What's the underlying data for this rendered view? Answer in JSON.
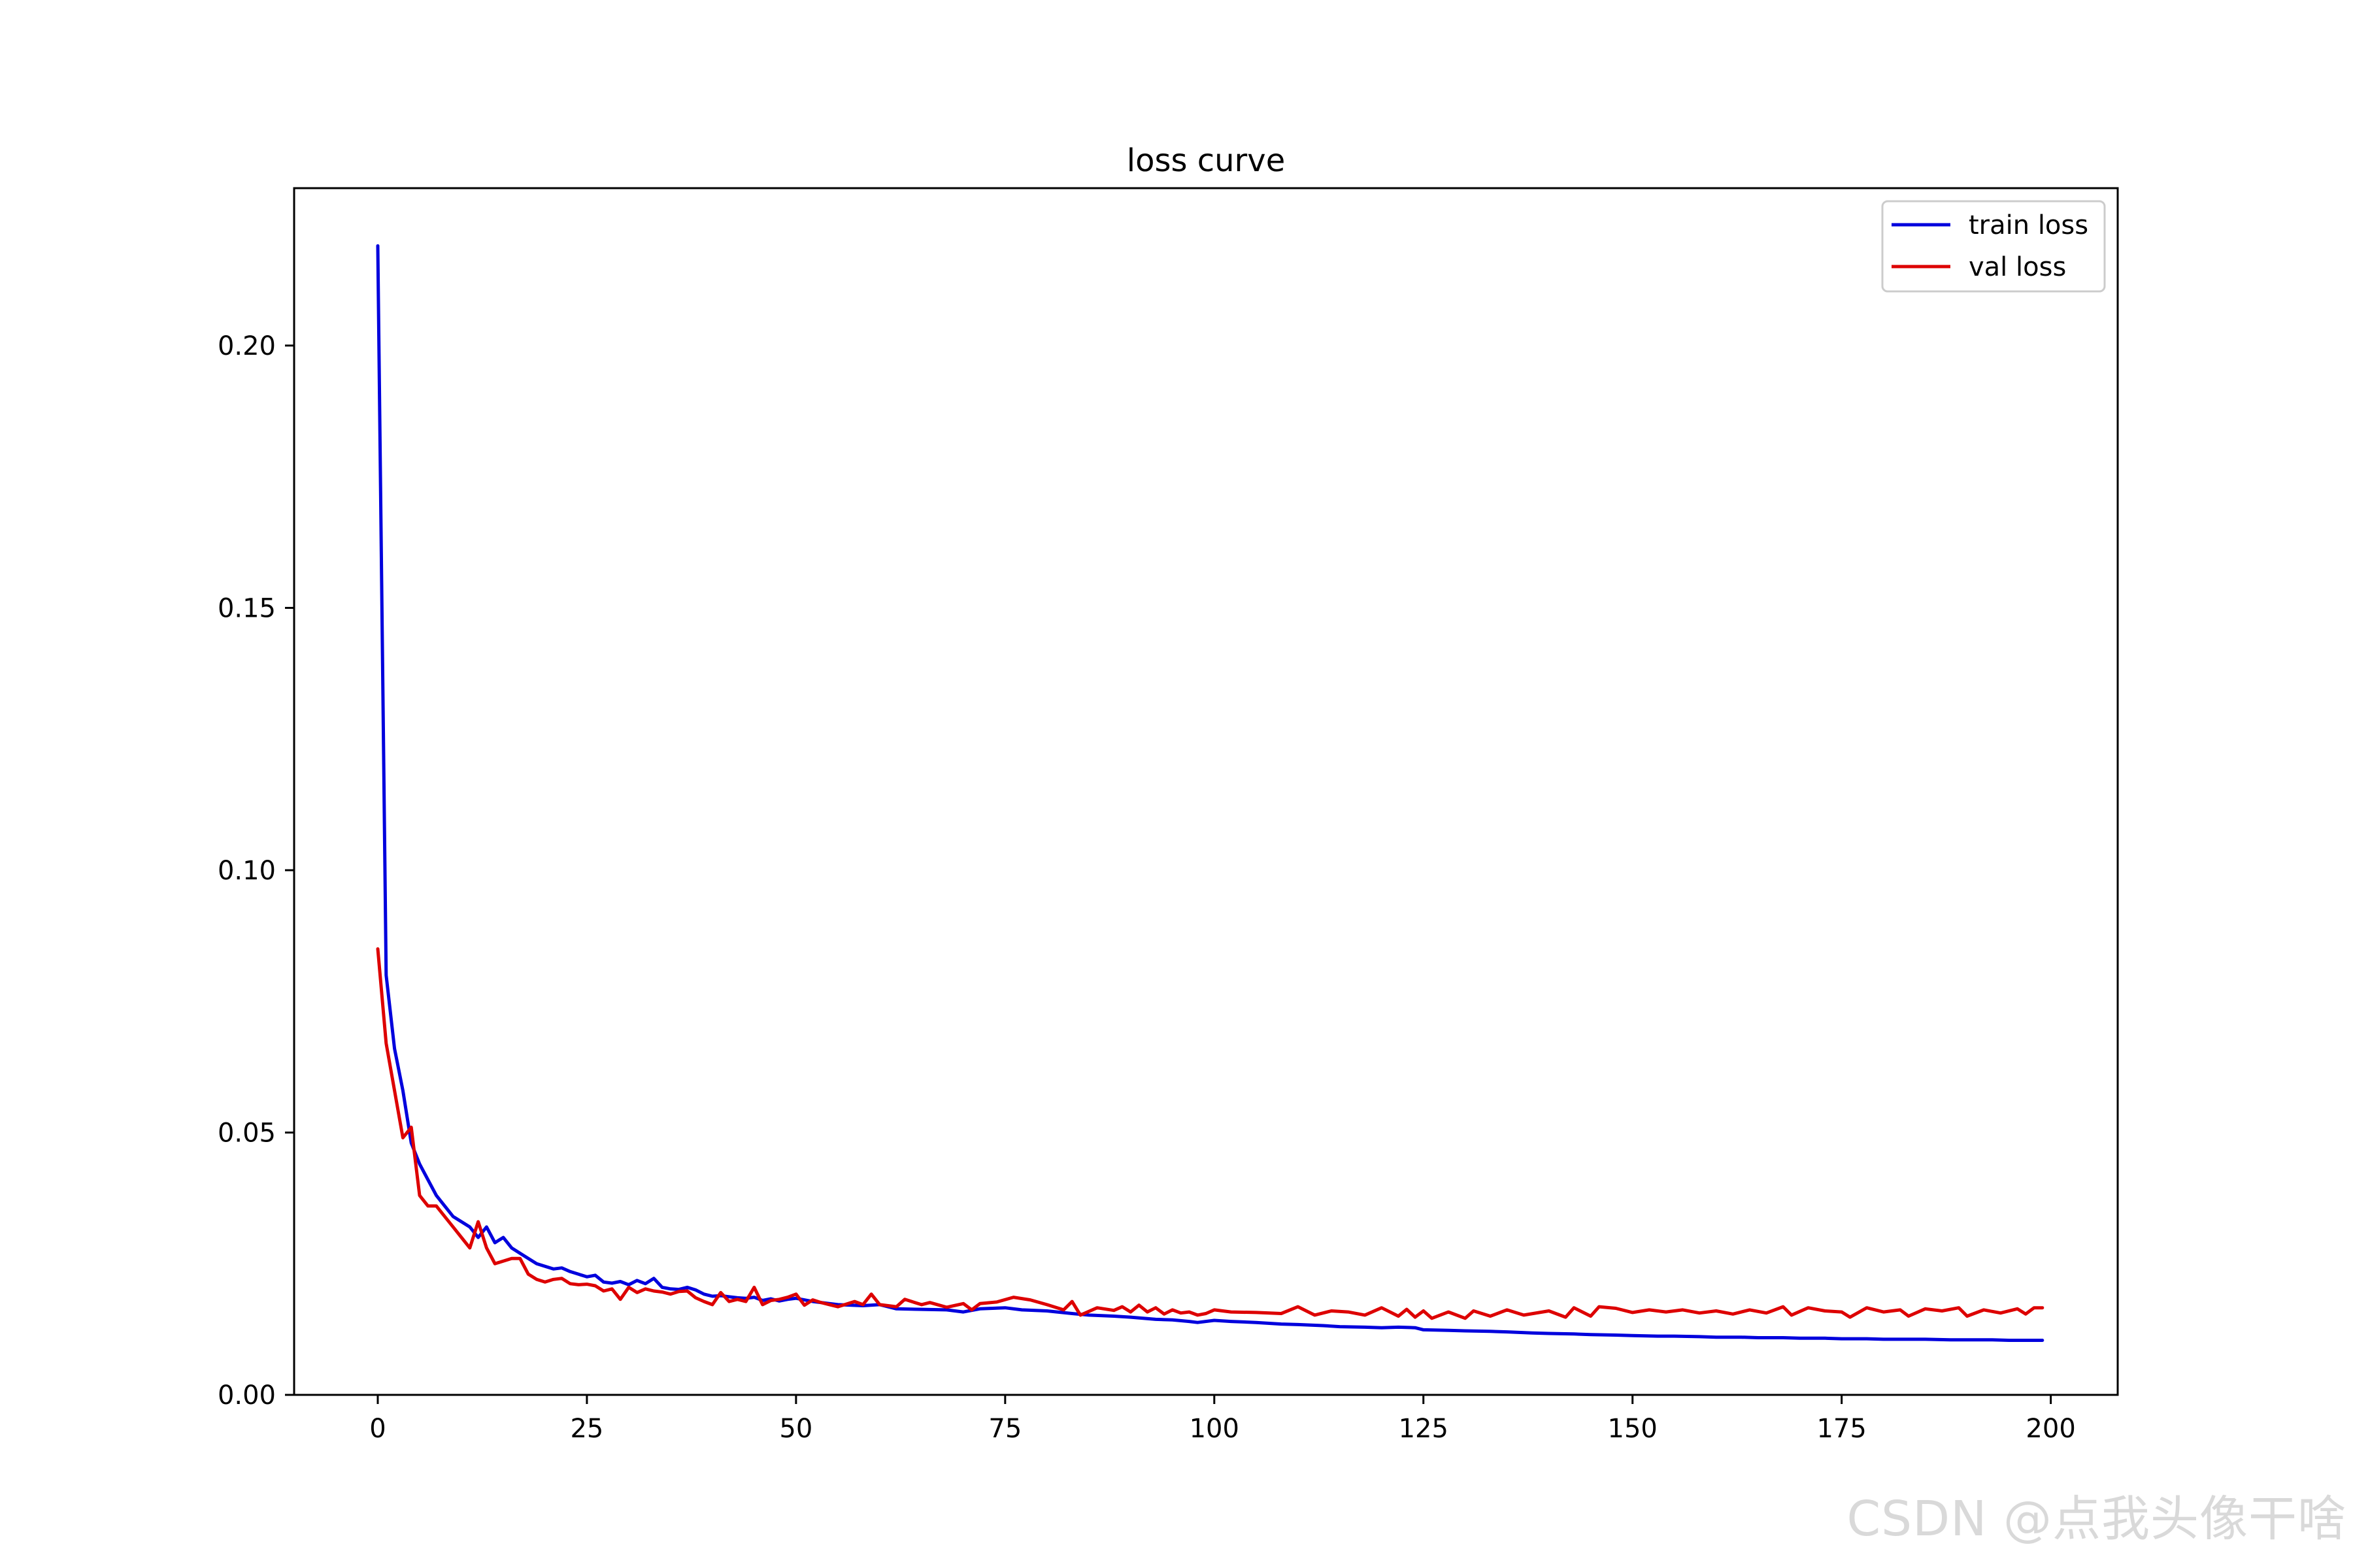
{
  "chart_data": {
    "type": "line",
    "title": "loss curve",
    "xlabel": "",
    "ylabel": "",
    "xlim": [
      -10,
      208
    ],
    "ylim": [
      0,
      0.23
    ],
    "xticks": [
      0,
      25,
      50,
      75,
      100,
      125,
      150,
      175,
      200
    ],
    "yticks": [
      0.0,
      0.05,
      0.1,
      0.15,
      0.2
    ],
    "xtick_labels": [
      "0",
      "25",
      "50",
      "75",
      "100",
      "125",
      "150",
      "175",
      "200"
    ],
    "ytick_labels": [
      "0.00",
      "0.05",
      "0.10",
      "0.15",
      "0.20"
    ],
    "grid": false,
    "legend_position": "top-right",
    "series": [
      {
        "name": "train loss",
        "color": "#0000dd",
        "points": [
          [
            0,
            0.219
          ],
          [
            1,
            0.08
          ],
          [
            2,
            0.066
          ],
          [
            3,
            0.058
          ],
          [
            4,
            0.048
          ],
          [
            5,
            0.044
          ],
          [
            6,
            0.041
          ],
          [
            7,
            0.038
          ],
          [
            8,
            0.036
          ],
          [
            9,
            0.034
          ],
          [
            10,
            0.033
          ],
          [
            11,
            0.032
          ],
          [
            12,
            0.03
          ],
          [
            13,
            0.032
          ],
          [
            14,
            0.029
          ],
          [
            15,
            0.03
          ],
          [
            16,
            0.028
          ],
          [
            17,
            0.027
          ],
          [
            18,
            0.026
          ],
          [
            19,
            0.025
          ],
          [
            20,
            0.0245
          ],
          [
            21,
            0.024
          ],
          [
            22,
            0.0242
          ],
          [
            23,
            0.0235
          ],
          [
            24,
            0.023
          ],
          [
            25,
            0.0225
          ],
          [
            26,
            0.0228
          ],
          [
            27,
            0.0215
          ],
          [
            28,
            0.0213
          ],
          [
            29,
            0.0216
          ],
          [
            30,
            0.021
          ],
          [
            31,
            0.0218
          ],
          [
            32,
            0.0212
          ],
          [
            33,
            0.0222
          ],
          [
            34,
            0.0205
          ],
          [
            35,
            0.0202
          ],
          [
            36,
            0.0201
          ],
          [
            37,
            0.0205
          ],
          [
            38,
            0.02
          ],
          [
            39,
            0.0192
          ],
          [
            40,
            0.0188
          ],
          [
            41,
            0.0189
          ],
          [
            42,
            0.0187
          ],
          [
            43,
            0.0185
          ],
          [
            44,
            0.0184
          ],
          [
            45,
            0.0186
          ],
          [
            46,
            0.018
          ],
          [
            47,
            0.0183
          ],
          [
            48,
            0.0179
          ],
          [
            49,
            0.0182
          ],
          [
            50,
            0.0184
          ],
          [
            52,
            0.0178
          ],
          [
            55,
            0.0172
          ],
          [
            58,
            0.017
          ],
          [
            60,
            0.0172
          ],
          [
            62,
            0.0164
          ],
          [
            65,
            0.0163
          ],
          [
            68,
            0.0162
          ],
          [
            70,
            0.0158
          ],
          [
            72,
            0.0164
          ],
          [
            75,
            0.0166
          ],
          [
            77,
            0.0162
          ],
          [
            80,
            0.016
          ],
          [
            83,
            0.0155
          ],
          [
            85,
            0.0152
          ],
          [
            88,
            0.015
          ],
          [
            90,
            0.0148
          ],
          [
            93,
            0.0144
          ],
          [
            95,
            0.0143
          ],
          [
            97,
            0.014
          ],
          [
            98,
            0.0138
          ],
          [
            100,
            0.0142
          ],
          [
            102,
            0.014
          ],
          [
            105,
            0.0138
          ],
          [
            108,
            0.0135
          ],
          [
            110,
            0.0134
          ],
          [
            113,
            0.0132
          ],
          [
            115,
            0.013
          ],
          [
            118,
            0.0129
          ],
          [
            120,
            0.0128
          ],
          [
            122,
            0.0129
          ],
          [
            124,
            0.0128
          ],
          [
            125,
            0.0124
          ],
          [
            128,
            0.0123
          ],
          [
            130,
            0.0122
          ],
          [
            133,
            0.0121
          ],
          [
            135,
            0.012
          ],
          [
            138,
            0.0118
          ],
          [
            140,
            0.0117
          ],
          [
            143,
            0.0116
          ],
          [
            145,
            0.0115
          ],
          [
            148,
            0.0114
          ],
          [
            150,
            0.0113
          ],
          [
            153,
            0.0112
          ],
          [
            155,
            0.0112
          ],
          [
            158,
            0.0111
          ],
          [
            160,
            0.011
          ],
          [
            163,
            0.011
          ],
          [
            165,
            0.0109
          ],
          [
            168,
            0.0109
          ],
          [
            170,
            0.0108
          ],
          [
            173,
            0.0108
          ],
          [
            175,
            0.0107
          ],
          [
            178,
            0.0107
          ],
          [
            180,
            0.0106
          ],
          [
            183,
            0.0106
          ],
          [
            185,
            0.0106
          ],
          [
            188,
            0.0105
          ],
          [
            190,
            0.0105
          ],
          [
            193,
            0.0105
          ],
          [
            195,
            0.0104
          ],
          [
            197,
            0.0104
          ],
          [
            199,
            0.0104
          ]
        ]
      },
      {
        "name": "val loss",
        "color": "#dd0000",
        "points": [
          [
            0,
            0.085
          ],
          [
            1,
            0.067
          ],
          [
            2,
            0.058
          ],
          [
            3,
            0.049
          ],
          [
            4,
            0.051
          ],
          [
            5,
            0.038
          ],
          [
            6,
            0.036
          ],
          [
            7,
            0.036
          ],
          [
            8,
            0.034
          ],
          [
            9,
            0.032
          ],
          [
            10,
            0.03
          ],
          [
            11,
            0.028
          ],
          [
            12,
            0.033
          ],
          [
            13,
            0.028
          ],
          [
            14,
            0.025
          ],
          [
            15,
            0.0255
          ],
          [
            16,
            0.026
          ],
          [
            17,
            0.026
          ],
          [
            18,
            0.023
          ],
          [
            19,
            0.022
          ],
          [
            20,
            0.0215
          ],
          [
            21,
            0.022
          ],
          [
            22,
            0.0222
          ],
          [
            23,
            0.0212
          ],
          [
            24,
            0.021
          ],
          [
            25,
            0.0211
          ],
          [
            26,
            0.0208
          ],
          [
            27,
            0.0198
          ],
          [
            28,
            0.0202
          ],
          [
            29,
            0.0182
          ],
          [
            30,
            0.0205
          ],
          [
            31,
            0.0195
          ],
          [
            32,
            0.0202
          ],
          [
            33,
            0.0198
          ],
          [
            34,
            0.0196
          ],
          [
            35,
            0.0192
          ],
          [
            36,
            0.0197
          ],
          [
            37,
            0.0198
          ],
          [
            38,
            0.0185
          ],
          [
            39,
            0.0178
          ],
          [
            40,
            0.0172
          ],
          [
            41,
            0.0195
          ],
          [
            42,
            0.0178
          ],
          [
            43,
            0.0182
          ],
          [
            44,
            0.0178
          ],
          [
            45,
            0.0205
          ],
          [
            46,
            0.0172
          ],
          [
            47,
            0.018
          ],
          [
            48,
            0.0182
          ],
          [
            49,
            0.0186
          ],
          [
            50,
            0.0192
          ],
          [
            51,
            0.0171
          ],
          [
            52,
            0.0181
          ],
          [
            53,
            0.0176
          ],
          [
            55,
            0.0168
          ],
          [
            57,
            0.0178
          ],
          [
            58,
            0.0172
          ],
          [
            59,
            0.0192
          ],
          [
            60,
            0.0172
          ],
          [
            62,
            0.0168
          ],
          [
            63,
            0.0182
          ],
          [
            65,
            0.0172
          ],
          [
            66,
            0.0176
          ],
          [
            68,
            0.0167
          ],
          [
            70,
            0.0174
          ],
          [
            71,
            0.0162
          ],
          [
            72,
            0.0174
          ],
          [
            74,
            0.0177
          ],
          [
            76,
            0.0186
          ],
          [
            78,
            0.0181
          ],
          [
            80,
            0.0172
          ],
          [
            82,
            0.0162
          ],
          [
            83,
            0.0178
          ],
          [
            84,
            0.0152
          ],
          [
            86,
            0.0166
          ],
          [
            88,
            0.0161
          ],
          [
            89,
            0.0168
          ],
          [
            90,
            0.0158
          ],
          [
            91,
            0.0171
          ],
          [
            92,
            0.0158
          ],
          [
            93,
            0.0166
          ],
          [
            94,
            0.0154
          ],
          [
            95,
            0.0162
          ],
          [
            96,
            0.0156
          ],
          [
            97,
            0.0158
          ],
          [
            98,
            0.0152
          ],
          [
            99,
            0.0155
          ],
          [
            100,
            0.0162
          ],
          [
            102,
            0.0158
          ],
          [
            105,
            0.0157
          ],
          [
            108,
            0.0155
          ],
          [
            110,
            0.0168
          ],
          [
            112,
            0.0152
          ],
          [
            114,
            0.016
          ],
          [
            116,
            0.0158
          ],
          [
            118,
            0.0152
          ],
          [
            120,
            0.0166
          ],
          [
            122,
            0.015
          ],
          [
            123,
            0.0163
          ],
          [
            124,
            0.0148
          ],
          [
            125,
            0.016
          ],
          [
            126,
            0.0146
          ],
          [
            128,
            0.0158
          ],
          [
            130,
            0.0146
          ],
          [
            131,
            0.016
          ],
          [
            133,
            0.015
          ],
          [
            135,
            0.0162
          ],
          [
            137,
            0.0152
          ],
          [
            140,
            0.016
          ],
          [
            142,
            0.0148
          ],
          [
            143,
            0.0166
          ],
          [
            145,
            0.015
          ],
          [
            146,
            0.0168
          ],
          [
            148,
            0.0165
          ],
          [
            150,
            0.0157
          ],
          [
            152,
            0.0162
          ],
          [
            154,
            0.0158
          ],
          [
            156,
            0.0162
          ],
          [
            158,
            0.0156
          ],
          [
            160,
            0.016
          ],
          [
            162,
            0.0154
          ],
          [
            164,
            0.0162
          ],
          [
            166,
            0.0156
          ],
          [
            168,
            0.0168
          ],
          [
            169,
            0.0152
          ],
          [
            171,
            0.0166
          ],
          [
            173,
            0.016
          ],
          [
            175,
            0.0158
          ],
          [
            176,
            0.0148
          ],
          [
            178,
            0.0166
          ],
          [
            180,
            0.0158
          ],
          [
            182,
            0.0162
          ],
          [
            183,
            0.015
          ],
          [
            185,
            0.0164
          ],
          [
            187,
            0.016
          ],
          [
            189,
            0.0166
          ],
          [
            190,
            0.015
          ],
          [
            192,
            0.0162
          ],
          [
            194,
            0.0156
          ],
          [
            196,
            0.0164
          ],
          [
            197,
            0.0154
          ],
          [
            198,
            0.0166
          ],
          [
            199,
            0.0166
          ]
        ]
      }
    ]
  },
  "watermark": "CSDN @点我头像干啥"
}
